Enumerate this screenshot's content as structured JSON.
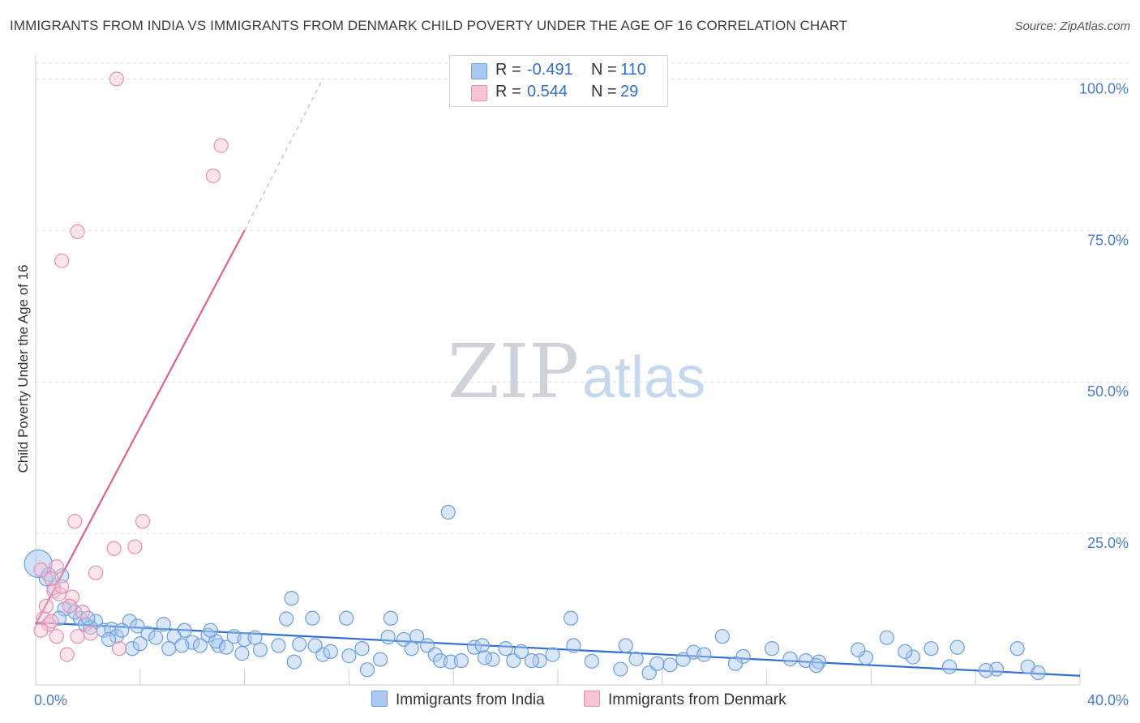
{
  "title": "IMMIGRANTS FROM INDIA VS IMMIGRANTS FROM DENMARK CHILD POVERTY UNDER THE AGE OF 16 CORRELATION CHART",
  "source": "Source: ZipAtlas.com",
  "watermark": {
    "zip": "ZIP",
    "atlas": "atlas"
  },
  "legend": {
    "r_label": "R =",
    "n_label": "N =",
    "india": {
      "r": "-0.491",
      "n": "110"
    },
    "denmark": {
      "r": "0.544",
      "n": "29"
    }
  },
  "colors": {
    "india_fill": "#aac8f0",
    "india_stroke": "#6a9ee0",
    "india_line": "#2f6fd0",
    "denmark_fill": "#f7c4d4",
    "denmark_stroke": "#e890ad",
    "denmark_line": "#e0608e",
    "tick_text": "#4a7bd0",
    "grid": "#dddddd"
  },
  "chart_data": {
    "type": "scatter",
    "title": "IMMIGRANTS FROM INDIA VS IMMIGRANTS FROM DENMARK CHILD POVERTY UNDER THE AGE OF 16 CORRELATION CHART",
    "xlabel": "",
    "ylabel": "Child Poverty Under the Age of 16",
    "xlim": [
      0,
      40
    ],
    "ylim": [
      0,
      105
    ],
    "x_tick_labels": [
      "0.0%",
      "40.0%"
    ],
    "y_ticks": [
      25,
      50,
      75,
      100
    ],
    "y_tick_labels": [
      "25.0%",
      "50.0%",
      "75.0%",
      "100.0%"
    ],
    "series": [
      {
        "name": "Immigrants from India",
        "points": [
          [
            0.1,
            20.0
          ],
          [
            0.5,
            18.2
          ],
          [
            1.0,
            18.0
          ],
          [
            0.7,
            16.0
          ],
          [
            1.3,
            13.0
          ],
          [
            1.1,
            12.5
          ],
          [
            0.9,
            11.0
          ],
          [
            1.7,
            11.0
          ],
          [
            1.9,
            10.0
          ],
          [
            2.3,
            10.5
          ],
          [
            2.1,
            9.5
          ],
          [
            2.6,
            9.0
          ],
          [
            2.9,
            9.2
          ],
          [
            3.6,
            10.5
          ],
          [
            3.9,
            9.7
          ],
          [
            4.9,
            10.0
          ],
          [
            5.7,
            9.0
          ],
          [
            3.1,
            8.0
          ],
          [
            3.3,
            9.0
          ],
          [
            4.3,
            8.5
          ],
          [
            4.6,
            7.8
          ],
          [
            5.3,
            8.0
          ],
          [
            6.6,
            8.2
          ],
          [
            6.0,
            7.0
          ],
          [
            5.1,
            6.0
          ],
          [
            7.6,
            8.0
          ],
          [
            8.0,
            7.5
          ],
          [
            7.0,
            6.5
          ],
          [
            9.3,
            6.5
          ],
          [
            5.6,
            6.5
          ],
          [
            6.3,
            6.5
          ],
          [
            6.9,
            7.2
          ],
          [
            7.3,
            6.2
          ],
          [
            7.9,
            5.2
          ],
          [
            8.6,
            5.8
          ],
          [
            9.6,
            10.9
          ],
          [
            9.8,
            14.3
          ],
          [
            10.6,
            11.0
          ],
          [
            11.0,
            5.0
          ],
          [
            10.1,
            6.7
          ],
          [
            10.7,
            6.5
          ],
          [
            11.3,
            5.5
          ],
          [
            12.0,
            4.8
          ],
          [
            11.9,
            11.0
          ],
          [
            12.5,
            6.0
          ],
          [
            13.5,
            7.9
          ],
          [
            13.6,
            11.0
          ],
          [
            14.1,
            7.5
          ],
          [
            14.6,
            8.0
          ],
          [
            15.0,
            6.5
          ],
          [
            14.4,
            6.0
          ],
          [
            15.3,
            5.0
          ],
          [
            15.5,
            4.0
          ],
          [
            15.9,
            3.8
          ],
          [
            16.3,
            4.0
          ],
          [
            17.5,
            4.2
          ],
          [
            18.3,
            4.0
          ],
          [
            18.6,
            5.5
          ],
          [
            19.3,
            4.0
          ],
          [
            19.8,
            5.0
          ],
          [
            20.6,
            6.5
          ],
          [
            20.5,
            11.0
          ],
          [
            21.3,
            3.9
          ],
          [
            22.4,
            2.6
          ],
          [
            23.0,
            4.3
          ],
          [
            23.5,
            2.0
          ],
          [
            24.3,
            3.3
          ],
          [
            24.8,
            4.2
          ],
          [
            25.2,
            5.4
          ],
          [
            26.3,
            8.0
          ],
          [
            27.1,
            4.7
          ],
          [
            28.2,
            6.0
          ],
          [
            28.9,
            4.3
          ],
          [
            29.5,
            4.0
          ],
          [
            30.0,
            3.8
          ],
          [
            31.8,
            4.5
          ],
          [
            32.6,
            7.8
          ],
          [
            33.6,
            4.6
          ],
          [
            34.3,
            6.0
          ],
          [
            35.0,
            3.0
          ],
          [
            35.3,
            6.2
          ],
          [
            36.8,
            2.6
          ],
          [
            37.6,
            6.0
          ],
          [
            38.0,
            3.0
          ],
          [
            38.4,
            2.0
          ],
          [
            16.8,
            6.2
          ],
          [
            22.6,
            6.5
          ],
          [
            13.2,
            4.2
          ],
          [
            9.9,
            3.8
          ],
          [
            12.7,
            2.5
          ],
          [
            8.4,
            7.8
          ],
          [
            3.7,
            6.0
          ],
          [
            4.0,
            6.8
          ],
          [
            6.7,
            9.0
          ],
          [
            2.8,
            7.5
          ],
          [
            1.5,
            12.0
          ],
          [
            0.4,
            17.5
          ],
          [
            2.0,
            11.0
          ],
          [
            17.1,
            6.5
          ],
          [
            18.0,
            6.0
          ],
          [
            23.8,
            3.5
          ],
          [
            25.6,
            5.0
          ],
          [
            29.9,
            3.2
          ],
          [
            36.4,
            2.4
          ],
          [
            33.3,
            5.5
          ],
          [
            19.0,
            4.0
          ],
          [
            17.2,
            4.5
          ],
          [
            26.8,
            3.5
          ],
          [
            31.5,
            5.8
          ],
          [
            15.8,
            28.5
          ]
        ]
      },
      {
        "name": "Immigrants from Denmark",
        "points": [
          [
            3.1,
            100.0
          ],
          [
            7.1,
            89.0
          ],
          [
            6.8,
            84.0
          ],
          [
            1.6,
            74.8
          ],
          [
            1.0,
            70.0
          ],
          [
            0.2,
            19.0
          ],
          [
            0.8,
            19.5
          ],
          [
            1.5,
            27.0
          ],
          [
            4.1,
            27.0
          ],
          [
            3.0,
            22.5
          ],
          [
            3.8,
            22.8
          ],
          [
            2.3,
            18.5
          ],
          [
            0.6,
            17.5
          ],
          [
            0.7,
            15.5
          ],
          [
            0.9,
            15.0
          ],
          [
            1.4,
            14.5
          ],
          [
            1.3,
            13.0
          ],
          [
            1.8,
            12.0
          ],
          [
            0.3,
            11.0
          ],
          [
            0.5,
            10.0
          ],
          [
            0.2,
            9.0
          ],
          [
            0.8,
            8.0
          ],
          [
            1.6,
            8.0
          ],
          [
            2.1,
            8.5
          ],
          [
            3.2,
            6.0
          ],
          [
            1.2,
            5.0
          ],
          [
            0.4,
            13.0
          ],
          [
            1.0,
            16.2
          ],
          [
            0.6,
            10.5
          ]
        ]
      }
    ],
    "trend_lines": [
      {
        "name": "Immigrants from India",
        "x": [
          0.0,
          40.0
        ],
        "y": [
          10.3,
          1.5
        ]
      },
      {
        "name": "Immigrants from Denmark",
        "x": [
          0.0,
          8.0
        ],
        "y": [
          10.0,
          75.0
        ],
        "dashed_extension_to": [
          11.0,
          100.0
        ]
      }
    ]
  },
  "bottom_legend": {
    "india": "Immigrants from India",
    "denmark": "Immigrants from Denmark"
  }
}
